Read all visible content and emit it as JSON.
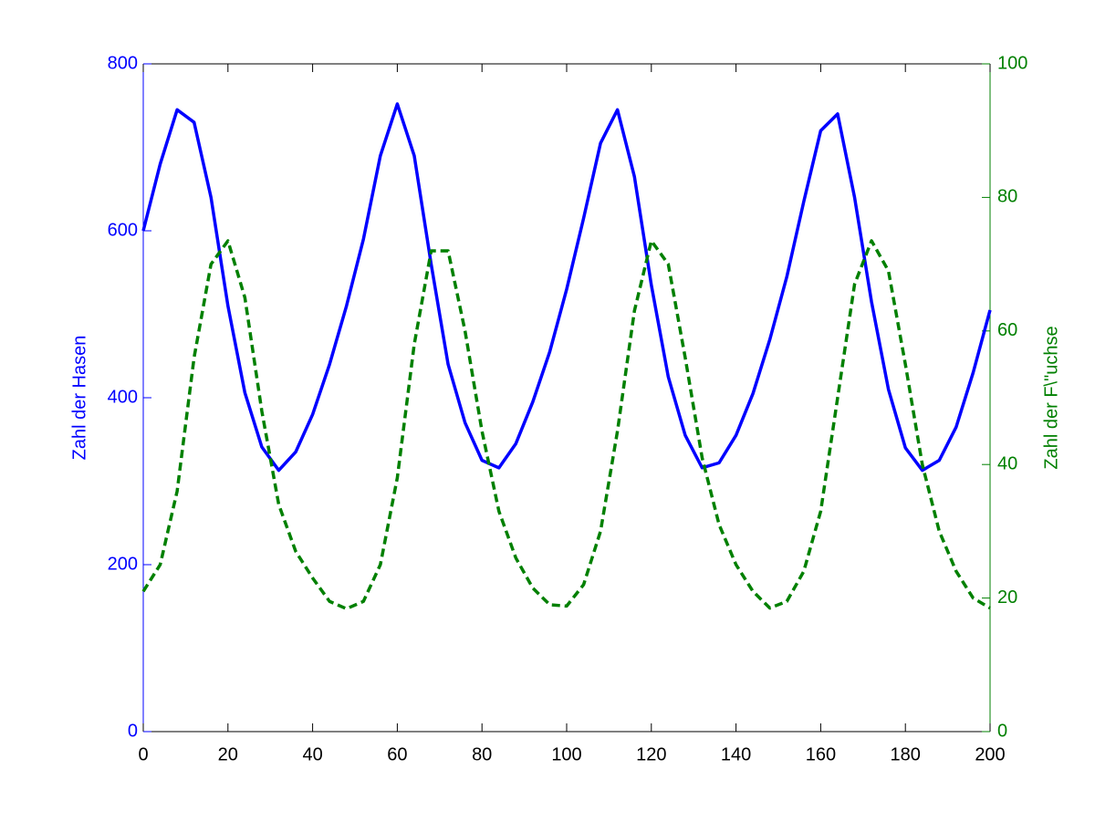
{
  "chart_data": {
    "type": "line",
    "x": [
      0,
      4,
      8,
      12,
      16,
      20,
      24,
      28,
      32,
      36,
      40,
      44,
      48,
      52,
      56,
      60,
      64,
      68,
      72,
      76,
      80,
      84,
      88,
      92,
      96,
      100,
      104,
      108,
      112,
      116,
      120,
      124,
      128,
      132,
      136,
      140,
      144,
      148,
      152,
      156,
      160,
      164,
      168,
      172,
      176,
      180,
      184,
      188,
      192,
      196,
      200
    ],
    "series": [
      {
        "name": "Zahl der Hasen",
        "color": "#0000ff",
        "axis": "y",
        "dash": false,
        "values": [
          600,
          680,
          745,
          730,
          640,
          510,
          406,
          341,
          313,
          335,
          380,
          440,
          510,
          590,
          690,
          752,
          690,
          560,
          440,
          370,
          325,
          316,
          345,
          395,
          455,
          530,
          615,
          705,
          745,
          665,
          535,
          425,
          355,
          316,
          322,
          355,
          405,
          470,
          545,
          635,
          720,
          740,
          640,
          515,
          410,
          340,
          313,
          325,
          365,
          430,
          505
        ]
      },
      {
        "name": "Zahl der F\\\"uchse",
        "color": "#008000",
        "axis": "y2",
        "dash": true,
        "values": [
          21,
          25,
          36,
          56,
          70,
          73.5,
          65,
          48,
          34,
          27,
          23,
          19.5,
          18.4,
          19.5,
          25,
          38,
          58,
          72,
          72,
          60,
          45,
          33,
          26,
          21.5,
          19,
          18.8,
          22,
          30,
          45,
          63,
          73.5,
          70,
          56,
          41,
          31,
          25,
          21,
          18.5,
          19.5,
          24,
          33,
          50,
          67,
          73.5,
          69,
          55,
          40,
          30,
          24,
          20,
          18.5
        ]
      }
    ],
    "xlim": [
      0,
      200
    ],
    "xticks": [
      0,
      20,
      40,
      60,
      80,
      100,
      120,
      140,
      160,
      180,
      200
    ],
    "ylim": [
      0,
      800
    ],
    "yticks": [
      0,
      200,
      400,
      600,
      800
    ],
    "y2lim": [
      0,
      100
    ],
    "y2ticks": [
      0,
      20,
      40,
      60,
      80,
      100
    ],
    "grid": false
  }
}
